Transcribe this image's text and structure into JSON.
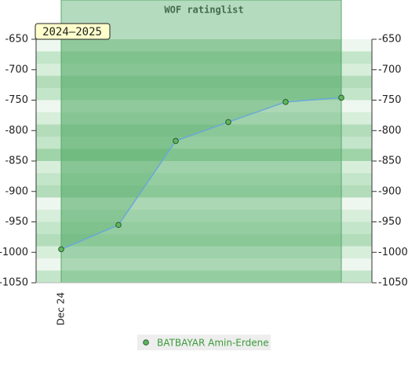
{
  "chart_data": {
    "type": "line",
    "title": "WOF ratinglist",
    "badge": "2024–2025",
    "categories": [
      "Dec 24",
      null,
      null,
      null,
      null,
      null
    ],
    "series": [
      {
        "name": "BATBAYAR Amin-Erdene",
        "color": "#6aa8d8",
        "marker_color": "#5cb85c",
        "values": [
          -995,
          -955,
          -817,
          -786,
          -753,
          -746
        ]
      }
    ],
    "ylim": [
      -1050,
      -650
    ],
    "yticks": [
      -1050,
      -1000,
      -950,
      -900,
      -850,
      -800,
      -750,
      -700,
      -650
    ],
    "y2lim": [
      -1050,
      -650
    ],
    "y2ticks": [
      -1050,
      -1000,
      -950,
      -900,
      -850,
      -800,
      -750,
      -700,
      -650
    ]
  }
}
